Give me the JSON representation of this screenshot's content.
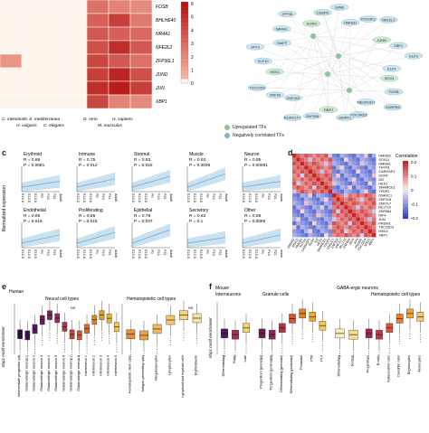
{
  "panel_a": {
    "genes": [
      "FOSB",
      "BHLHE40",
      "NR4A1",
      "NFE2L2",
      "ZFP36L1",
      "JUND",
      "JUN",
      "XBP1"
    ],
    "species": [
      "C. intestinalis",
      "H. vulgaris",
      "S. mediterranea",
      "C. elegans",
      "D. rerio",
      "M. musculus",
      "H. sapiens"
    ],
    "colorbar_ticks": [
      "6",
      "5",
      "4",
      "3",
      "2",
      "1",
      "0"
    ]
  },
  "panel_b": {
    "nodes": [
      "SOX4",
      "FOSB",
      "SNRPB2",
      "NEUROD1",
      "GTF2IRD1",
      "DMRT2",
      "RBPJ",
      "ZNF536",
      "RUNX1T1",
      "ZNF263",
      "ZNF90",
      "TSC22D2",
      "HES1",
      "KLF10",
      "ATF3",
      "MAFF",
      "NR4A1",
      "ZFP36",
      "EGR3",
      "CEBPD",
      "JUNB",
      "HMGB1",
      "POU3F3",
      "NFE2L2",
      "JUND",
      "XBP1",
      "ELF3",
      "KLF4"
    ],
    "legend": [
      "Upregulated TFs",
      "Negatively correlated TFs"
    ]
  },
  "panel_c": {
    "ylabel": "Normalized expression",
    "xticks": [
      "E10.5",
      "E12.5",
      "E15.5",
      "P0",
      "P10",
      "P21",
      "Adult"
    ],
    "plots": [
      {
        "title": "Erythroid",
        "r": "R = 0.86",
        "p": "P = 0.0081"
      },
      {
        "title": "Immune",
        "r": "R = 0.75",
        "p": "P = 0.012"
      },
      {
        "title": "Stromal",
        "r": "R = 0.83",
        "p": "P = 0.022"
      },
      {
        "title": "Muscle",
        "r": "R = 0.92",
        "p": "P = 0.0036"
      },
      {
        "title": "Neuron",
        "r": "R = 0.95",
        "p": "P = 0.00061"
      },
      {
        "title": "Endothelial",
        "r": "R = 0.85",
        "p": "P = 0.016"
      },
      {
        "title": "Proliferating",
        "r": "R = 0.85",
        "p": "P = 0.015"
      },
      {
        "title": "Epithelial",
        "r": "R = 0.78",
        "p": "P = 0.037"
      },
      {
        "title": "Secretory",
        "r": "R = 0.62",
        "p": "P = 0.1"
      },
      {
        "title": "Other",
        "r": "R = 0.88",
        "p": "P = 0.0086"
      }
    ]
  },
  "panel_d": {
    "genes": [
      "HMGB2",
      "SOX11",
      "HMGB1",
      "THYN1",
      "CARHSP1",
      "SOX4",
      "ID2",
      "HES1",
      "SMARCE1",
      "TFDP2",
      "DNAJC1",
      "ZNF318",
      "ZNF217",
      "MLLT10",
      "ZNF664",
      "IRF4",
      "JUN",
      "PRDM1",
      "TSC22D3",
      "MXD1",
      "XBP1"
    ],
    "colorbar_title": "Correlation",
    "colorbar_ticks": [
      "0.2",
      "0.1",
      "0",
      "-0.1",
      "-0.2"
    ]
  },
  "panel_e": {
    "title": "Human",
    "group1": "Neural cell types",
    "group2": "Hematopoietic cell types",
    "ylabel": "Xbp1 motif enrichment",
    "ns": "NS",
    "cats1": [
      "Intermediate progenitor cell",
      "Glutamatergic neuron 1",
      "Glutamatergic neuron 2",
      "Glutamatergic neuron 3",
      "Glutamatergic neuron 4",
      "Glutamatergic neuron 5",
      "Glutamatergic neuron 6",
      "Glutamatergic neuron 7",
      "Glutamatergic neuron 8",
      "Interneuron 1",
      "Interneuron 2",
      "Interneuron 3",
      "Interneuron 4",
      "Interneuron 5"
    ],
    "cats2": [
      "Hematopoietic stem cells",
      "Antigen-presenting cells",
      "Megakaryocytes",
      "Lymphocytes",
      "Lymphoid and myeloid cells",
      "Erythroblasts"
    ]
  },
  "panel_f": {
    "title": "Mouse",
    "group1": "Interneurons",
    "group2": "Granule cells",
    "group3": "GABA-ergic neurons",
    "group4": "Hematopoietic cell types",
    "ylabel": "Xbp1 motif enrichment",
    "cats1": [
      "Differentiating",
      "Early",
      "Late"
    ],
    "cats2": [
      "Progenitors (prenatal)",
      "Progenitors (postnatal)",
      "Differentiating (prenatal)",
      "Differentiating (postnatal)",
      "Postnatal",
      "P56",
      "P14"
    ],
    "cats3": [
      "Differentiating",
      "Normal"
    ],
    "cats4": [
      "Progenitors",
      "B cells",
      "Natural killer cells",
      "Dendritic cells",
      "Erythrocytes",
      "Monocytes"
    ]
  },
  "labels": {
    "c": "c",
    "d": "d",
    "e": "e",
    "f": "f"
  }
}
